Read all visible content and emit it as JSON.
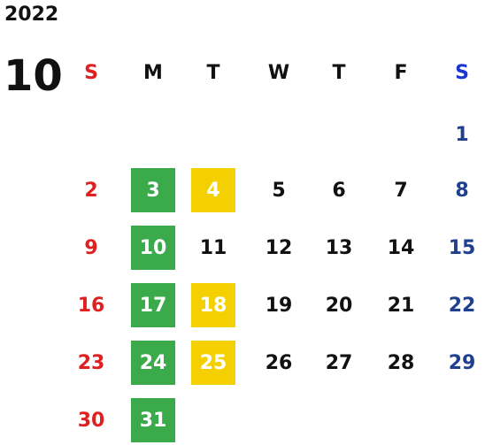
{
  "calendar": {
    "year": "2022",
    "month": "10",
    "weekdays": [
      "S",
      "M",
      "T",
      "W",
      "T",
      "F",
      "S"
    ],
    "weeks": [
      [
        "",
        "",
        "",
        "",
        "",
        "",
        "1"
      ],
      [
        "2",
        "3",
        "4",
        "5",
        "6",
        "7",
        "8"
      ],
      [
        "9",
        "10",
        "11",
        "12",
        "13",
        "14",
        "15"
      ],
      [
        "16",
        "17",
        "18",
        "19",
        "20",
        "21",
        "22"
      ],
      [
        "23",
        "24",
        "25",
        "26",
        "27",
        "28",
        "29"
      ],
      [
        "30",
        "31",
        "",
        "",
        "",
        "",
        ""
      ]
    ],
    "highlight_green": [
      "3",
      "10",
      "17",
      "24",
      "31"
    ],
    "highlight_yellow": [
      "4",
      "18",
      "25"
    ],
    "colors": {
      "sunday": "#e02020",
      "saturday_header": "#1a35d0",
      "saturday": "#1f3f8f",
      "weekday": "#111111",
      "green": "#3aaa4a",
      "yellow": "#f5d000"
    }
  }
}
